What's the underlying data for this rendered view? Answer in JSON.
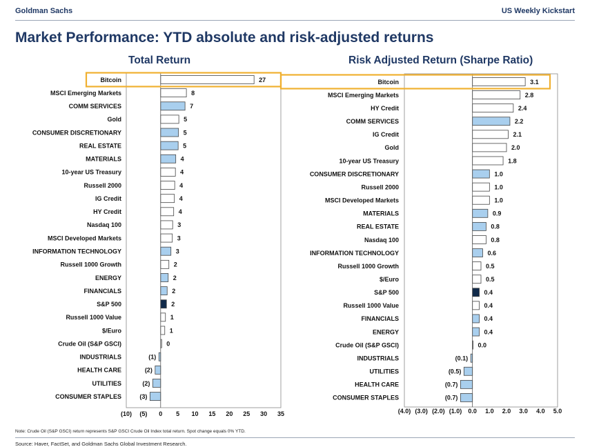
{
  "header": {
    "brand": "Goldman Sachs",
    "report": "US Weekly Kickstart"
  },
  "page_title": "Market Performance: YTD absolute and risk-adjusted returns",
  "colors": {
    "white_bar": "#ffffff",
    "blue_bar": "#a9cfee",
    "dark_bar": "#102a4a",
    "highlight": "#f0b030",
    "title": "#1f3864"
  },
  "chart_data": [
    {
      "type": "bar",
      "orientation": "horizontal",
      "title": "Total Return",
      "xlim": [
        -10,
        35
      ],
      "ticks": [
        -10,
        -5,
        0,
        5,
        10,
        15,
        20,
        25,
        30,
        35
      ],
      "tick_labels": [
        "(10)",
        "(5)",
        "0",
        "5",
        "10",
        "15",
        "20",
        "25",
        "30",
        "35"
      ],
      "categories": [
        "Bitcoin",
        "MSCI Emerging Markets",
        "COMM SERVICES",
        "Gold",
        "CONSUMER DISCRETIONARY",
        "REAL ESTATE",
        "MATERIALS",
        "10-year US Treasury",
        "Russell 2000",
        "IG Credit",
        "HY Credit",
        "Nasdaq 100",
        "MSCI Developed Markets",
        "INFORMATION TECHNOLOGY",
        "Russell 1000 Growth",
        "ENERGY",
        "FINANCIALS",
        "S&P 500",
        "Russell 1000 Value",
        "$/Euro",
        "Crude Oil (S&P GSCI)",
        "INDUSTRIALS",
        "HEALTH CARE",
        "UTILITIES",
        "CONSUMER STAPLES"
      ],
      "values": [
        27.2,
        7.5,
        7.1,
        5.3,
        5.2,
        5.1,
        4.4,
        4.3,
        4.1,
        4.0,
        3.8,
        3.5,
        3.4,
        3.0,
        2.4,
        2.2,
        1.9,
        1.7,
        1.4,
        1.2,
        0.3,
        -0.5,
        -1.6,
        -2.3,
        -3.1
      ],
      "labels": [
        "27",
        "8",
        "7",
        "5",
        "5",
        "5",
        "4",
        "4",
        "4",
        "4",
        "4",
        "3",
        "3",
        "3",
        "2",
        "2",
        "2",
        "2",
        "1",
        "1",
        "0",
        "(1)",
        "(2)",
        "(2)",
        "(3)"
      ],
      "styles": [
        "white",
        "white",
        "blue",
        "white",
        "blue",
        "blue",
        "blue",
        "white",
        "white",
        "white",
        "white",
        "white",
        "white",
        "blue",
        "white",
        "blue",
        "blue",
        "dark",
        "white",
        "white",
        "white",
        "blue",
        "blue",
        "blue",
        "blue"
      ],
      "highlighted": "Bitcoin"
    },
    {
      "type": "bar",
      "orientation": "horizontal",
      "title": "Risk Adjusted Return (Sharpe Ratio)",
      "xlim": [
        -4,
        5
      ],
      "ticks": [
        -4,
        -3,
        -2,
        -1,
        0,
        1,
        2,
        3,
        4,
        5
      ],
      "tick_labels": [
        "(4.0)",
        "(3.0)",
        "(2.0)",
        "(1.0)",
        "0.0",
        "1.0",
        "2.0",
        "3.0",
        "4.0",
        "5.0"
      ],
      "categories": [
        "Bitcoin",
        "MSCI Emerging Markets",
        "HY Credit",
        "COMM SERVICES",
        "IG Credit",
        "Gold",
        "10-year US Treasury",
        "CONSUMER DISCRETIONARY",
        "Russell 2000",
        "MSCI Developed Markets",
        "MATERIALS",
        "REAL ESTATE",
        "Nasdaq 100",
        "INFORMATION TECHNOLOGY",
        "Russell 1000 Growth",
        "$/Euro",
        "S&P 500",
        "Russell 1000 Value",
        "FINANCIALS",
        "ENERGY",
        "Crude Oil (S&P GSCI)",
        "INDUSTRIALS",
        "UTILITIES",
        "HEALTH CARE",
        "CONSUMER STAPLES"
      ],
      "values": [
        3.1,
        2.8,
        2.4,
        2.2,
        2.1,
        2.0,
        1.8,
        1.0,
        1.0,
        1.0,
        0.9,
        0.8,
        0.8,
        0.6,
        0.5,
        0.5,
        0.4,
        0.4,
        0.4,
        0.4,
        0.0,
        -0.1,
        -0.5,
        -0.7,
        -0.7
      ],
      "labels": [
        "3.1",
        "2.8",
        "2.4",
        "2.2",
        "2.1",
        "2.0",
        "1.8",
        "1.0",
        "1.0",
        "1.0",
        "0.9",
        "0.8",
        "0.8",
        "0.6",
        "0.5",
        "0.5",
        "0.4",
        "0.4",
        "0.4",
        "0.4",
        "0.0",
        "(0.1)",
        "(0.5)",
        "(0.7)",
        "(0.7)"
      ],
      "styles": [
        "white",
        "white",
        "white",
        "blue",
        "white",
        "white",
        "white",
        "blue",
        "white",
        "white",
        "blue",
        "blue",
        "white",
        "blue",
        "white",
        "white",
        "dark",
        "white",
        "blue",
        "blue",
        "white",
        "blue",
        "blue",
        "blue",
        "blue"
      ],
      "highlighted": "Bitcoin"
    }
  ],
  "note": "Note: Crude Oil (S&P GSCI) return represents S&P GSCI Crude Oil Index total return. Spot change equals 0% YTD.",
  "source": "Source: Haver, FactSet, and Goldman Sachs Global Investment Research."
}
